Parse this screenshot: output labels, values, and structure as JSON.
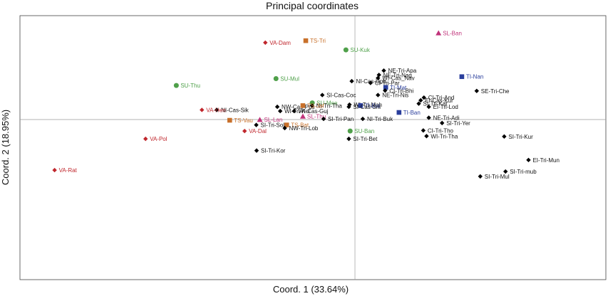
{
  "chart_data": {
    "type": "scatter",
    "title": "Principal coordinates",
    "xlabel": "Coord. 1 (33.64%)",
    "ylabel": "Coord. 2 (18.95%)",
    "xlim": [
      -1.0,
      0.81
    ],
    "ylim": [
      -0.85,
      0.5
    ],
    "grid": false,
    "groups": {
      "black": {
        "color": "#000000",
        "marker": "diamond"
      },
      "red": {
        "color": "#c0272d",
        "marker": "diamond"
      },
      "orange": {
        "color": "#c8702a",
        "marker": "square"
      },
      "green": {
        "color": "#4fa04a",
        "marker": "circle"
      },
      "pink": {
        "color": "#c0337a",
        "marker": "triangle"
      },
      "blue": {
        "color": "#2a3e9c",
        "marker": "square"
      }
    },
    "points": [
      {
        "label": "VA-Dam",
        "group": "red",
        "x": -0.242,
        "y": 0.362
      },
      {
        "label": "TS-Tri",
        "group": "orange",
        "x": -0.117,
        "y": 0.372
      },
      {
        "label": "SL-Ban",
        "group": "pink",
        "x": 0.293,
        "y": 0.411
      },
      {
        "label": "SU-Kuk",
        "group": "green",
        "x": 0.007,
        "y": 0.325
      },
      {
        "label": "NE-Tri-Apa",
        "group": "black",
        "x": 0.124,
        "y": 0.219
      },
      {
        "label": "NE-Tri-Nag",
        "group": "black",
        "x": 0.109,
        "y": 0.197
      },
      {
        "label": "WI-Cas_Nav",
        "group": "black",
        "x": 0.106,
        "y": 0.181
      },
      {
        "label": "CI-Tri-Par",
        "group": "black",
        "x": 0.083,
        "y": 0.156
      },
      {
        "label": "TI-Nan",
        "group": "blue",
        "x": 0.365,
        "y": 0.188
      },
      {
        "label": "NI-Cas-Upb",
        "group": "black",
        "x": 0.025,
        "y": 0.165
      },
      {
        "label": "TI-Mat",
        "group": "blue",
        "x": 0.13,
        "y": 0.133
      },
      {
        "label": "SU-Mul",
        "group": "green",
        "x": -0.209,
        "y": 0.178
      },
      {
        "label": "SU-Thu",
        "group": "green",
        "x": -0.517,
        "y": 0.143
      },
      {
        "label": "SE-Tri-Che",
        "group": "black",
        "x": 0.411,
        "y": 0.115
      },
      {
        "label": "CI-Tri-Bhi",
        "group": "black",
        "x": 0.128,
        "y": 0.117
      },
      {
        "label": "CI-Tri-And",
        "group": "black",
        "x": 0.248,
        "y": 0.081
      },
      {
        "label": "NE-Tri-Nis",
        "group": "black",
        "x": 0.106,
        "y": 0.094
      },
      {
        "label": "EI-Cas-Kur",
        "group": "black",
        "x": 0.238,
        "y": 0.067
      },
      {
        "label": "SI-Cas-Coc",
        "group": "black",
        "x": -0.066,
        "y": 0.094
      },
      {
        "label": "SI-Tri-Kat",
        "group": "black",
        "x": 0.232,
        "y": 0.05
      },
      {
        "label": "SU-Mee",
        "group": "green",
        "x": -0.097,
        "y": 0.054
      },
      {
        "label": "WI-Tri-Mah",
        "group": "black",
        "x": 0.018,
        "y": 0.045
      },
      {
        "label": "NW-Cas-Pus",
        "group": "black",
        "x": -0.205,
        "y": 0.034
      },
      {
        "label": "NI-Tri-Tha",
        "group": "black",
        "x": -0.098,
        "y": 0.04
      },
      {
        "label": "TS-Jaf",
        "group": "orange",
        "x": -0.126,
        "y": 0.04
      },
      {
        "label": "TI-Bal",
        "group": "blue",
        "x": 0.052,
        "y": 0.04
      },
      {
        "label": "EI-Tri-Lod",
        "group": "black",
        "x": 0.263,
        "y": 0.034
      },
      {
        "label": "NI-Cas-Sik",
        "group": "black",
        "x": -0.392,
        "y": 0.018
      },
      {
        "label": "VA-Hen",
        "group": "red",
        "x": -0.438,
        "y": 0.018
      },
      {
        "label": "SI-Cas-Sril",
        "group": "black",
        "x": 0.016,
        "y": 0.034
      },
      {
        "label": "WI-Cas-Guj",
        "group": "black",
        "x": -0.153,
        "y": 0.012
      },
      {
        "label": "WI-Tri-Kol",
        "group": "black",
        "x": -0.196,
        "y": 0.012
      },
      {
        "label": "TI-Ban",
        "group": "blue",
        "x": 0.171,
        "y": 0.005
      },
      {
        "label": "SL-Thu",
        "group": "pink",
        "x": -0.126,
        "y": -0.015
      },
      {
        "label": "NE-Tri-Adi",
        "group": "black",
        "x": 0.263,
        "y": -0.022
      },
      {
        "label": "NI-Tri-Buk",
        "group": "black",
        "x": 0.059,
        "y": -0.028
      },
      {
        "label": "TS-Vau",
        "group": "orange",
        "x": -0.352,
        "y": -0.035
      },
      {
        "label": "SL-Lan",
        "group": "pink",
        "x": -0.259,
        "y": -0.032
      },
      {
        "label": "SI-Tri-Pan",
        "group": "black",
        "x": -0.062,
        "y": -0.028
      },
      {
        "label": "SI-Tri-Yer",
        "group": "black",
        "x": 0.304,
        "y": -0.049
      },
      {
        "label": "TS-Bat",
        "group": "orange",
        "x": -0.176,
        "y": -0.059
      },
      {
        "label": "SI-Tri-Sol",
        "group": "black",
        "x": -0.27,
        "y": -0.059
      },
      {
        "label": "NW-Tri-Lob",
        "group": "black",
        "x": -0.182,
        "y": -0.075
      },
      {
        "label": "VA-Dal",
        "group": "red",
        "x": -0.306,
        "y": -0.09
      },
      {
        "label": "SU-Ban",
        "group": "green",
        "x": 0.02,
        "y": -0.09
      },
      {
        "label": "CI-Tri-Tho",
        "group": "black",
        "x": 0.246,
        "y": -0.087
      },
      {
        "label": "WI-Tri-Tha",
        "group": "black",
        "x": 0.256,
        "y": -0.116
      },
      {
        "label": "SI-Tri-Kur",
        "group": "black",
        "x": 0.496,
        "y": -0.118
      },
      {
        "label": "VA-Pol",
        "group": "red",
        "x": -0.612,
        "y": -0.13
      },
      {
        "label": "SI-Tri-Bet",
        "group": "black",
        "x": 0.016,
        "y": -0.13
      },
      {
        "label": "SI-Tri-Kor",
        "group": "black",
        "x": -0.269,
        "y": -0.19
      },
      {
        "label": "EI-Tri-Mun",
        "group": "black",
        "x": 0.571,
        "y": -0.238
      },
      {
        "label": "VA-Rat",
        "group": "red",
        "x": -0.893,
        "y": -0.29
      },
      {
        "label": "SI-Tri-mub",
        "group": "black",
        "x": 0.5,
        "y": -0.297
      },
      {
        "label": "SI-Tri-Mul",
        "group": "black",
        "x": 0.422,
        "y": -0.322
      }
    ]
  }
}
